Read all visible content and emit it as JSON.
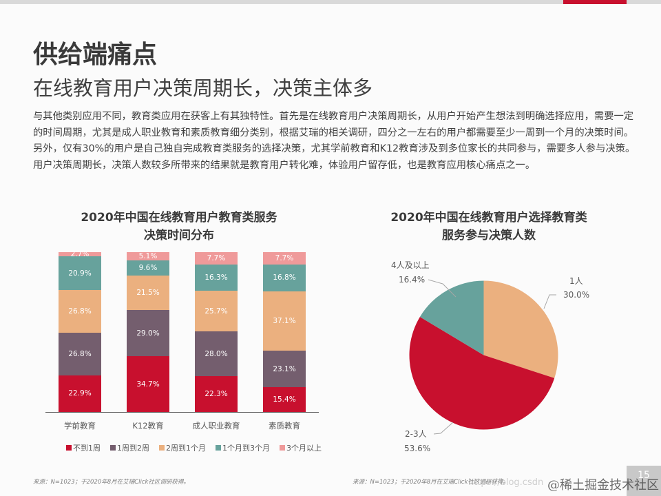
{
  "header": {
    "title": "供给端痛点",
    "subtitle": "在线教育用户决策周期长，决策主体多"
  },
  "body": {
    "paragraph1": "与其他类别应用不同，教育类应用在获客上有其独特性。首先是在线教育用户决策周期长，从用户开始产生想法到明确选择应用，需要一定的时间周期，尤其是成人职业教育和素质教育细分类别，根据艾瑞的相关调研，四分之一左右的用户都需要至少一周到一个月的决策时间。",
    "paragraph2": "另外，仅有30%的用户是自己独自完成教育类服务的选择决策，尤其学前教育和K12教育涉及到多位家长的共同参与，需要多人参与决策。用户决策周期长，决策人数较多所带来的结果就是教育用户转化难，体验用户留存低，也是教育应用核心痛点之一。"
  },
  "colors": {
    "accent": "#c8102e",
    "lt1week": "#c8102e",
    "w1to2": "#745e6e",
    "w2to1m": "#ebb07f",
    "m1to3": "#67a29c",
    "gt3m": "#ef9a9a"
  },
  "chart_data": [
    {
      "type": "bar",
      "stacked": true,
      "title": "2020年中国在线教育用户教育类服务决策时间分布",
      "title_line1": "2020年中国在线教育用户教育类服务",
      "title_line2": "决策时间分布",
      "categories": [
        "学前教育",
        "K12教育",
        "成人职业教育",
        "素质教育"
      ],
      "series": [
        {
          "name": "不到1周",
          "color": "#c8102e",
          "values": [
            22.9,
            34.7,
            22.3,
            15.4
          ],
          "labels": [
            "22.9%",
            "34.7%",
            "22.3%",
            "15.4%"
          ]
        },
        {
          "name": "1周到2周",
          "color": "#745e6e",
          "values": [
            26.8,
            29.0,
            28.0,
            23.1
          ],
          "labels": [
            "26.8%",
            "29.0%",
            "28.0%",
            "23.1%"
          ]
        },
        {
          "name": "2周到1个月",
          "color": "#ebb07f",
          "values": [
            26.8,
            21.5,
            25.7,
            37.1
          ],
          "labels": [
            "26.8%",
            "21.5%",
            "25.7%",
            "37.1%"
          ]
        },
        {
          "name": "1个月到3个月",
          "color": "#67a29c",
          "values": [
            20.9,
            9.6,
            16.3,
            16.8
          ],
          "labels": [
            "20.9%",
            "9.6%",
            "16.3%",
            "16.8%"
          ]
        },
        {
          "name": "3个月以上",
          "color": "#ef9a9a",
          "values": [
            2.7,
            5.1,
            7.7,
            7.7
          ],
          "labels": [
            "2.7%",
            "5.1%",
            "7.7%",
            "7.7%"
          ]
        }
      ],
      "xlabel": "",
      "ylabel": "",
      "ylim": [
        0,
        100
      ],
      "legend_position": "bottom",
      "grid": false,
      "source": "来源：N=1023；于2020年8月在艾瑞Click社区调研获得。"
    },
    {
      "type": "pie",
      "title": "2020年中国在线教育用户选择教育类服务参与决策人数",
      "title_line1": "2020年中国在线教育用户选择教育类",
      "title_line2": "服务参与决策人数",
      "slices": [
        {
          "name": "1人",
          "value": 30.0,
          "label": "30.0%",
          "color": "#ebb07f"
        },
        {
          "name": "2-3人",
          "value": 53.6,
          "label": "53.6%",
          "color": "#c8102e"
        },
        {
          "name": "4人及以上",
          "value": 16.4,
          "label": "16.4%",
          "color": "#67a29c"
        }
      ],
      "source": "来源：N=1023；于2020年8月在艾瑞Click社区调研获得。"
    }
  ],
  "footer": {
    "page_number": "15",
    "watermark": "@稀土掘金技术社区",
    "watermark_url": "https://blog.csdn"
  }
}
